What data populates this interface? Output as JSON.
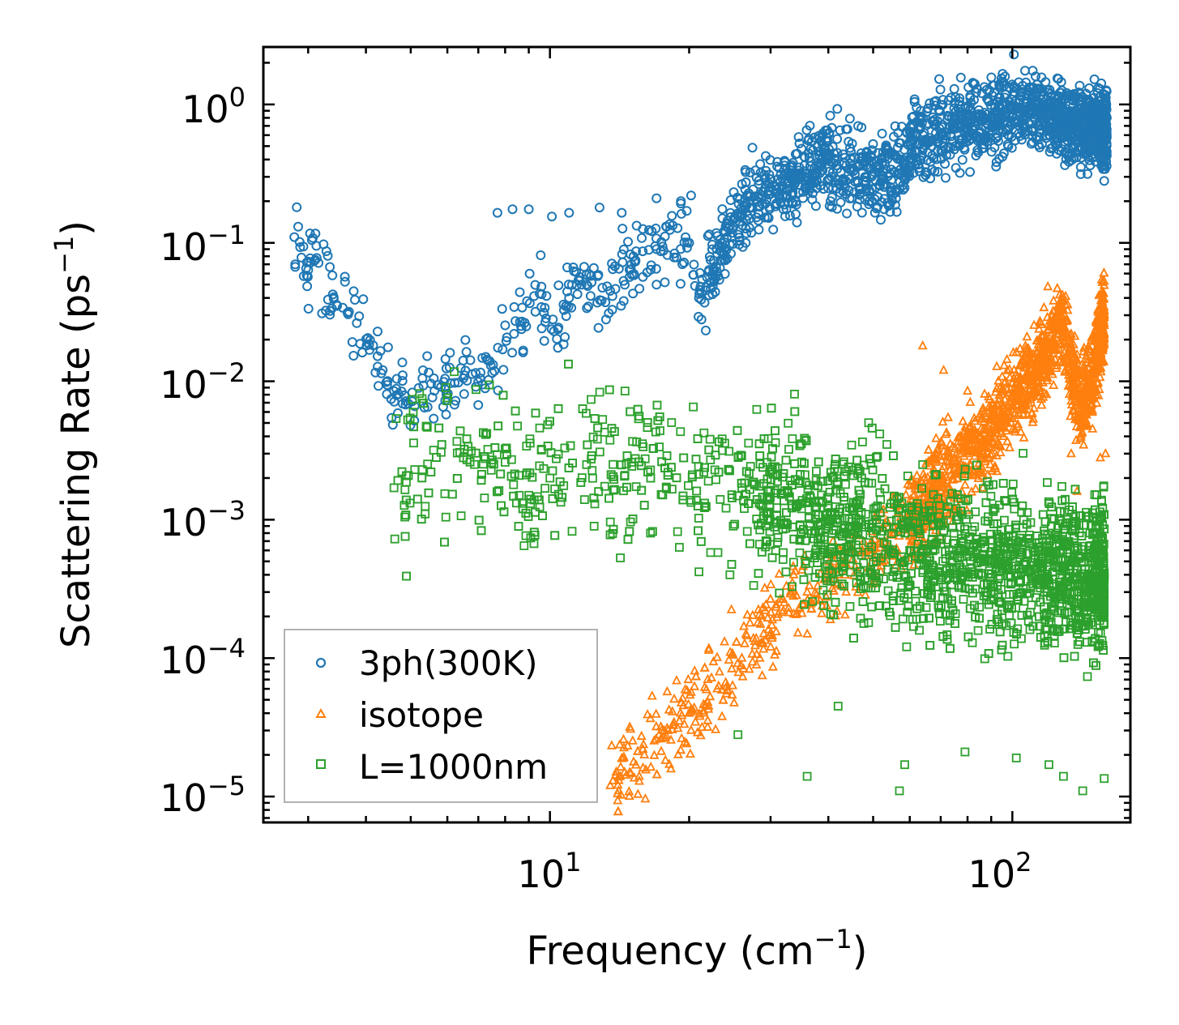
{
  "chart_data": {
    "type": "scatter",
    "xscale": "log",
    "yscale": "log",
    "xlim": [
      2.4,
      180
    ],
    "ylim": [
      6.5e-06,
      2.6
    ],
    "xlabel": "Frequency (cm",
    "xlabel_sup": "−1",
    "xlabel_end": ")",
    "ylabel": "Scattering Rate (ps",
    "ylabel_sup": "−1",
    "ylabel_end": ")",
    "x_ticks": [
      {
        "base": "10",
        "exp": "1",
        "value": 10
      },
      {
        "base": "10",
        "exp": "2",
        "value": 100
      }
    ],
    "y_ticks": [
      {
        "base": "10",
        "exp": "0",
        "value": 1
      },
      {
        "base": "10",
        "exp": "−1",
        "value": 0.1
      },
      {
        "base": "10",
        "exp": "−2",
        "value": 0.01
      },
      {
        "base": "10",
        "exp": "−3",
        "value": 0.001
      },
      {
        "base": "10",
        "exp": "−4",
        "value": 0.0001
      },
      {
        "base": "10",
        "exp": "−5",
        "value": 1e-05
      }
    ],
    "legend_position": "lower-left",
    "series": [
      {
        "name": "3ph(300K)",
        "color": "#1f77b4",
        "marker": "circle",
        "anchors": [
          [
            2.8,
            0.11
          ],
          [
            4.6,
            0.0085
          ],
          [
            5.1,
            0.0066
          ],
          [
            5.3,
            0.0105
          ],
          [
            6.5,
            0.0105
          ],
          [
            7.5,
            0.0115
          ],
          [
            7.9,
            0.017
          ],
          [
            8.7,
            0.027
          ],
          [
            9.5,
            0.043
          ],
          [
            10.2,
            0.023
          ],
          [
            11.0,
            0.04
          ],
          [
            12.0,
            0.05
          ],
          [
            13.5,
            0.045
          ],
          [
            15.0,
            0.07
          ],
          [
            17.0,
            0.09
          ],
          [
            20.0,
            0.1
          ],
          [
            21.0,
            0.04
          ],
          [
            25.0,
            0.15
          ],
          [
            30.0,
            0.25
          ],
          [
            35.0,
            0.3
          ],
          [
            40.0,
            0.4
          ],
          [
            48.0,
            0.3
          ],
          [
            58.0,
            0.38
          ],
          [
            62.0,
            0.6
          ],
          [
            75.0,
            0.7
          ],
          [
            100.0,
            0.85
          ],
          [
            115.0,
            0.95
          ],
          [
            130.0,
            0.7
          ],
          [
            150.0,
            0.7
          ],
          [
            160.0,
            0.6
          ]
        ],
        "points": [
          [
            7.7,
            0.165
          ],
          [
            8.3,
            0.175
          ],
          [
            9.0,
            0.175
          ],
          [
            10.1,
            0.155
          ],
          [
            11.0,
            0.165
          ],
          [
            12.8,
            0.18
          ],
          [
            14.3,
            0.165
          ],
          [
            17.0,
            0.21
          ],
          [
            19.2,
            0.2
          ],
          [
            20.2,
            0.22
          ],
          [
            22.3,
            0.052
          ],
          [
            21.6,
            0.037
          ],
          [
            45.0,
            0.21
          ],
          [
            58.0,
            0.26
          ],
          [
            77.0,
            0.32
          ],
          [
            118.0,
            1.45
          ],
          [
            130.0,
            0.45
          ],
          [
            158.0,
            0.28
          ]
        ]
      },
      {
        "name": "isotope",
        "color": "#ff7f0e",
        "marker": "triangle",
        "anchors": [
          [
            13.5,
            1.2e-05
          ],
          [
            14.5,
            1.5e-05
          ],
          [
            16.0,
            2e-05
          ],
          [
            18.0,
            3e-05
          ],
          [
            20.0,
            4e-05
          ],
          [
            23.0,
            6e-05
          ],
          [
            26.0,
            0.0001
          ],
          [
            29.0,
            0.00015
          ],
          [
            32.0,
            0.00022
          ],
          [
            36.0,
            0.0003
          ],
          [
            42.0,
            0.0004
          ],
          [
            50.0,
            0.0006
          ],
          [
            60.0,
            0.001
          ],
          [
            70.0,
            0.0018
          ],
          [
            80.0,
            0.003
          ],
          [
            95.0,
            0.006
          ],
          [
            110.0,
            0.011
          ],
          [
            120.0,
            0.016
          ],
          [
            128.0,
            0.03
          ],
          [
            140.0,
            0.006
          ],
          [
            150.0,
            0.012
          ],
          [
            158.0,
            0.03
          ]
        ],
        "points": [
          [
            64.0,
            0.018
          ],
          [
            71.0,
            0.012
          ],
          [
            80.0,
            0.0085
          ],
          [
            88.0,
            0.0045
          ],
          [
            96.0,
            0.013
          ],
          [
            112.0,
            0.009
          ],
          [
            128.0,
            0.04
          ],
          [
            134.0,
            0.003
          ],
          [
            138.0,
            0.0016
          ],
          [
            155.0,
            0.0028
          ],
          [
            159.0,
            0.003
          ],
          [
            14.0,
            1.05e-05
          ],
          [
            15.6,
            1.4e-05
          ]
        ]
      },
      {
        "name": "L=1000nm",
        "color": "#2ca02c",
        "marker": "square",
        "anchors": [
          [
            4.6,
            0.0017
          ],
          [
            5.1,
            0.0023
          ],
          [
            5.3,
            0.0023
          ],
          [
            6.5,
            0.0028
          ],
          [
            7.5,
            0.0027
          ],
          [
            8.0,
            0.0026
          ],
          [
            9.0,
            0.0015
          ],
          [
            10.0,
            0.002
          ],
          [
            12.0,
            0.0025
          ],
          [
            15.0,
            0.0026
          ],
          [
            18.0,
            0.0022
          ],
          [
            22.0,
            0.0019
          ],
          [
            26.0,
            0.0017
          ],
          [
            30.0,
            0.0016
          ],
          [
            35.0,
            0.0012
          ],
          [
            40.0,
            0.0009
          ],
          [
            50.0,
            0.0008
          ],
          [
            60.0,
            0.0006
          ],
          [
            75.0,
            0.00055
          ],
          [
            90.0,
            0.0005
          ],
          [
            110.0,
            0.0004
          ],
          [
            125.0,
            0.00045
          ],
          [
            140.0,
            0.00035
          ],
          [
            158.0,
            0.0004
          ]
        ],
        "points": [
          [
            7.3,
            0.0042
          ],
          [
            8.9,
            0.0034
          ],
          [
            9.5,
            0.0046
          ],
          [
            13.0,
            0.0053
          ],
          [
            15.6,
            0.0056
          ],
          [
            17.3,
            0.0044
          ],
          [
            14.2,
            0.00053
          ],
          [
            21.0,
            0.00042
          ],
          [
            24.5,
            0.0004
          ],
          [
            25.5,
            2.8e-05
          ],
          [
            36.0,
            1.4e-05
          ],
          [
            42.0,
            4.5e-05
          ],
          [
            57.0,
            1.1e-05
          ],
          [
            58.5,
            1.7e-05
          ],
          [
            79.0,
            2.1e-05
          ],
          [
            64.0,
            0.0025
          ],
          [
            68.0,
            0.0021
          ],
          [
            102.0,
            1.9e-05
          ],
          [
            120.0,
            1.7e-05
          ],
          [
            129.0,
            1.4e-05
          ],
          [
            142.0,
            1.1e-05
          ],
          [
            158.0,
            1.35e-05
          ],
          [
            12.5,
            0.0013
          ],
          [
            16.5,
            0.0008
          ]
        ]
      }
    ]
  }
}
